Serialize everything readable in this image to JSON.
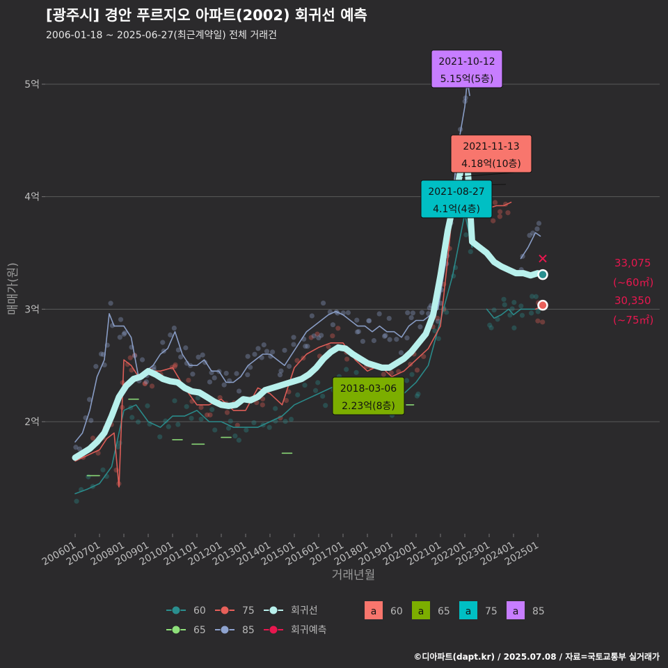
{
  "header": {
    "title": "[광주시] 경안 푸르지오 아파트(2002) 회귀선 예측",
    "subtitle": "2006-01-18 ~ 2025-06-27(최근계약일) 전체 거래건",
    "credit": "©디아파트(dapt.kr) / 2025.07.08 / 자료=국토교통부 실거래가"
  },
  "colors": {
    "background": "#2b2a2c",
    "grid": "#5a5a5a",
    "s60": "#2a8f8f",
    "s65": "#8ee07a",
    "s75": "#e8605a",
    "s85": "#8ea3cf",
    "regression": "#b8f0ec",
    "forecast": "#e8174f"
  },
  "chart_data": {
    "type": "line",
    "title": "[광주시] 경안 푸르지오 아파트(2002) 회귀선 예측",
    "xlabel": "거래년월",
    "ylabel": "매매가(원)",
    "xlim": [
      "2006-01",
      "2025-12"
    ],
    "ylim": [
      1.1,
      5.4
    ],
    "ylim_unit": "억",
    "y_ticks": [
      2,
      3,
      4,
      5
    ],
    "y_tick_labels": [
      "2억",
      "3억",
      "4억",
      "5억"
    ],
    "x_tick_labels": [
      "200601",
      "200701",
      "200801",
      "200901",
      "201001",
      "201101",
      "201201",
      "201301",
      "201401",
      "201501",
      "201601",
      "201701",
      "201801",
      "201901",
      "202001",
      "202101",
      "202201",
      "202301",
      "202401",
      "202501"
    ],
    "grid": true,
    "series": [
      {
        "name": "60",
        "color_key": "s60",
        "x": [
          2006.0,
          2006.5,
          2007.0,
          2007.5,
          2008.0,
          2008.5,
          2009.0,
          2009.5,
          2010.0,
          2010.5,
          2011.0,
          2011.5,
          2012.0,
          2012.5,
          2013.0,
          2013.5,
          2014.0,
          2014.5,
          2015.0,
          2015.5,
          2016.0,
          2016.5,
          2017.0,
          2017.5,
          2018.0,
          2018.5,
          2019.0,
          2019.5,
          2020.0,
          2020.5,
          2021.0,
          2021.5,
          2022.0,
          2022.3
        ],
        "y": [
          1.36,
          1.4,
          1.45,
          1.6,
          2.1,
          2.15,
          2.0,
          1.95,
          2.05,
          2.05,
          2.1,
          2.0,
          2.0,
          1.95,
          1.95,
          1.95,
          2.0,
          2.05,
          2.15,
          2.2,
          2.25,
          2.3,
          2.35,
          2.3,
          2.3,
          2.2,
          2.15,
          2.25,
          2.35,
          2.5,
          2.9,
          3.3,
          3.85,
          3.55
        ]
      },
      {
        "name": "60-late",
        "color_key": "s60",
        "x": [
          2022.9,
          2023.2,
          2023.5,
          2023.8,
          2024.0,
          2024.3,
          2024.6,
          2024.9,
          2025.1
        ],
        "y": [
          3.0,
          2.92,
          2.95,
          3.0,
          2.95,
          3.0,
          3.0,
          3.0,
          3.0
        ]
      },
      {
        "name": "75",
        "color_key": "s75",
        "x": [
          2006.0,
          2006.5,
          2007.0,
          2007.3,
          2007.6,
          2007.8,
          2008.0,
          2008.3,
          2008.6,
          2009.0,
          2009.5,
          2010.0,
          2010.5,
          2011.0,
          2011.5,
          2012.0,
          2012.5,
          2013.0,
          2013.5,
          2014.0,
          2014.5,
          2015.0,
          2015.5,
          2016.0,
          2016.5,
          2017.0,
          2017.5,
          2018.0,
          2018.5,
          2019.0,
          2019.5,
          2020.0,
          2020.5,
          2021.0,
          2021.3,
          2021.6,
          2021.9
        ],
        "y": [
          1.65,
          1.7,
          1.75,
          1.85,
          1.9,
          1.42,
          2.55,
          2.5,
          2.4,
          2.45,
          2.45,
          2.48,
          2.3,
          2.15,
          2.15,
          2.2,
          2.1,
          2.1,
          2.3,
          2.25,
          2.15,
          2.48,
          2.6,
          2.66,
          2.7,
          2.7,
          2.55,
          2.45,
          2.5,
          2.4,
          2.45,
          2.55,
          2.65,
          2.85,
          3.45,
          4.1,
          4.18
        ]
      },
      {
        "name": "75-late",
        "color_key": "s75",
        "x": [
          2023.0,
          2023.3,
          2023.6,
          2023.9
        ],
        "y": [
          3.9,
          3.92,
          3.92,
          3.95
        ]
      },
      {
        "name": "75-recent",
        "color_key": "s75",
        "x": [
          2024.9,
          2025.1,
          2025.3
        ],
        "y": [
          3.0,
          3.02,
          3.03
        ]
      },
      {
        "name": "65",
        "color_key": "s65",
        "x": [
          2006.5,
          2007.0
        ],
        "y": [
          1.52,
          1.52
        ]
      },
      {
        "name": "65b",
        "color_key": "s65",
        "x": [
          2008.2,
          2008.6
        ],
        "y": [
          2.2,
          2.2
        ]
      },
      {
        "name": "65c",
        "color_key": "s65",
        "x": [
          2010.0,
          2010.4
        ],
        "y": [
          1.84,
          1.84
        ]
      },
      {
        "name": "65d",
        "color_key": "s65",
        "x": [
          2010.8,
          2011.3
        ],
        "y": [
          1.8,
          1.8
        ]
      },
      {
        "name": "65e",
        "color_key": "s65",
        "x": [
          2012.0,
          2012.4
        ],
        "y": [
          1.86,
          1.86
        ]
      },
      {
        "name": "65f",
        "color_key": "s65",
        "x": [
          2014.5,
          2014.9
        ],
        "y": [
          1.72,
          1.72
        ]
      },
      {
        "name": "65g",
        "color_key": "s65",
        "x": [
          2017.9,
          2018.3
        ],
        "y": [
          2.23,
          2.23
        ]
      },
      {
        "name": "65h",
        "color_key": "s65",
        "x": [
          2019.6,
          2019.9
        ],
        "y": [
          2.15,
          2.15
        ]
      },
      {
        "name": "85",
        "color_key": "s85",
        "x": [
          2006.0,
          2006.3,
          2006.6,
          2006.9,
          2007.2,
          2007.4,
          2007.6,
          2008.0,
          2008.3,
          2008.6,
          2008.9,
          2009.2,
          2009.5,
          2009.8,
          2010.1,
          2010.4,
          2010.7,
          2011.0,
          2011.3,
          2011.6,
          2011.9,
          2012.2,
          2012.5,
          2012.8,
          2013.1,
          2013.4,
          2013.7,
          2014.0,
          2014.3,
          2014.6,
          2014.9,
          2015.2,
          2015.5,
          2015.8,
          2016.1,
          2016.4,
          2016.7,
          2017.0,
          2017.3,
          2017.6,
          2017.9,
          2018.2,
          2018.5,
          2018.8,
          2019.1,
          2019.4,
          2019.7,
          2020.0,
          2020.3,
          2020.6,
          2020.9,
          2021.2,
          2021.4,
          2021.6,
          2021.8,
          2022.0,
          2022.1,
          2022.2
        ],
        "y": [
          1.82,
          1.9,
          2.1,
          2.4,
          2.55,
          2.96,
          2.85,
          2.85,
          2.75,
          2.4,
          2.45,
          2.5,
          2.6,
          2.65,
          2.8,
          2.6,
          2.5,
          2.5,
          2.55,
          2.45,
          2.45,
          2.35,
          2.35,
          2.4,
          2.5,
          2.55,
          2.6,
          2.6,
          2.55,
          2.5,
          2.6,
          2.7,
          2.8,
          2.85,
          2.9,
          2.95,
          2.98,
          2.95,
          2.9,
          2.85,
          2.85,
          2.8,
          2.85,
          2.8,
          2.8,
          2.75,
          2.85,
          2.9,
          2.9,
          2.95,
          3.0,
          3.4,
          3.8,
          4.2,
          4.55,
          4.8,
          5.03,
          4.9
        ]
      },
      {
        "name": "85-late",
        "color_key": "s85",
        "x": [
          2022.4,
          2022.8
        ],
        "y": [
          4.35,
          4.35
        ]
      },
      {
        "name": "85-recent",
        "color_key": "s85",
        "x": [
          2024.3,
          2024.6,
          2024.9,
          2025.1
        ],
        "y": [
          3.45,
          3.55,
          3.68,
          3.65
        ]
      },
      {
        "name": "회귀선",
        "color_key": "regression",
        "x": [
          2006.0,
          2006.3,
          2006.6,
          2006.9,
          2007.2,
          2007.5,
          2007.8,
          2008.1,
          2008.4,
          2008.7,
          2009.0,
          2009.3,
          2009.6,
          2009.9,
          2010.2,
          2010.5,
          2010.8,
          2011.1,
          2011.4,
          2011.7,
          2012.0,
          2012.3,
          2012.6,
          2012.9,
          2013.2,
          2013.5,
          2013.8,
          2014.1,
          2014.4,
          2014.7,
          2015.0,
          2015.3,
          2015.6,
          2015.9,
          2016.2,
          2016.5,
          2016.8,
          2017.1,
          2017.4,
          2017.7,
          2018.0,
          2018.3,
          2018.6,
          2018.9,
          2019.2,
          2019.5,
          2019.8,
          2020.1,
          2020.4,
          2020.7,
          2021.0,
          2021.3,
          2021.6,
          2021.9,
          2022.1,
          2022.3,
          2022.6,
          2022.9,
          2023.2,
          2023.5,
          2023.8,
          2024.1,
          2024.4,
          2024.7,
          2025.0,
          2025.2
        ],
        "y": [
          1.68,
          1.72,
          1.76,
          1.82,
          1.9,
          2.05,
          2.22,
          2.32,
          2.38,
          2.4,
          2.45,
          2.42,
          2.38,
          2.36,
          2.35,
          2.3,
          2.27,
          2.26,
          2.22,
          2.18,
          2.15,
          2.14,
          2.15,
          2.2,
          2.19,
          2.22,
          2.28,
          2.3,
          2.32,
          2.34,
          2.36,
          2.38,
          2.42,
          2.48,
          2.56,
          2.62,
          2.66,
          2.65,
          2.6,
          2.56,
          2.52,
          2.5,
          2.48,
          2.48,
          2.52,
          2.56,
          2.62,
          2.7,
          2.78,
          2.95,
          3.3,
          3.7,
          4.0,
          4.3,
          4.32,
          3.6,
          3.55,
          3.5,
          3.42,
          3.38,
          3.35,
          3.32,
          3.32,
          3.3,
          3.32,
          3.3
        ]
      }
    ],
    "endpoints": [
      {
        "name": "~60㎡",
        "x": 2025.2,
        "y": 3.3075,
        "value": "33,075",
        "area": "(~60㎡)",
        "color_key": "s60"
      },
      {
        "name": "~75㎡",
        "x": 2025.2,
        "y": 3.035,
        "value": "30,350",
        "area": "(~75㎡)",
        "color_key": "s75"
      }
    ],
    "annotations": [
      {
        "date": "2021-10-12",
        "price": "5.15억(5층)",
        "x": 2021.78,
        "y": 5.15,
        "fill": "#c77dff"
      },
      {
        "date": "2021-11-13",
        "price": "4.18억(10층)",
        "x": 2021.87,
        "y": 4.18,
        "fill": "#f8766d"
      },
      {
        "date": "2021-08-27",
        "price": "4.1억(4층)",
        "x": 2021.65,
        "y": 4.1,
        "fill": "#00bfc4"
      },
      {
        "date": "2018-03-06",
        "price": "2.23억(8층)",
        "x": 2018.18,
        "y": 2.23,
        "fill": "#7cae00"
      }
    ],
    "legend": {
      "placement": "bottom",
      "line_items": [
        {
          "label": "60",
          "color_key": "s60"
        },
        {
          "label": "75",
          "color_key": "s75"
        },
        {
          "label": "회귀선",
          "color_key": "regression"
        },
        {
          "label": "65",
          "color_key": "s65"
        },
        {
          "label": "85",
          "color_key": "s85"
        },
        {
          "label": "회귀예측",
          "color_key": "forecast"
        }
      ],
      "label_items": [
        {
          "glyph": "a",
          "label": "60",
          "fill": "#f8766d"
        },
        {
          "glyph": "a",
          "label": "65",
          "fill": "#7cae00"
        },
        {
          "glyph": "a",
          "label": "75",
          "fill": "#00bfc4"
        },
        {
          "glyph": "a",
          "label": "85",
          "fill": "#c77dff"
        }
      ]
    }
  }
}
